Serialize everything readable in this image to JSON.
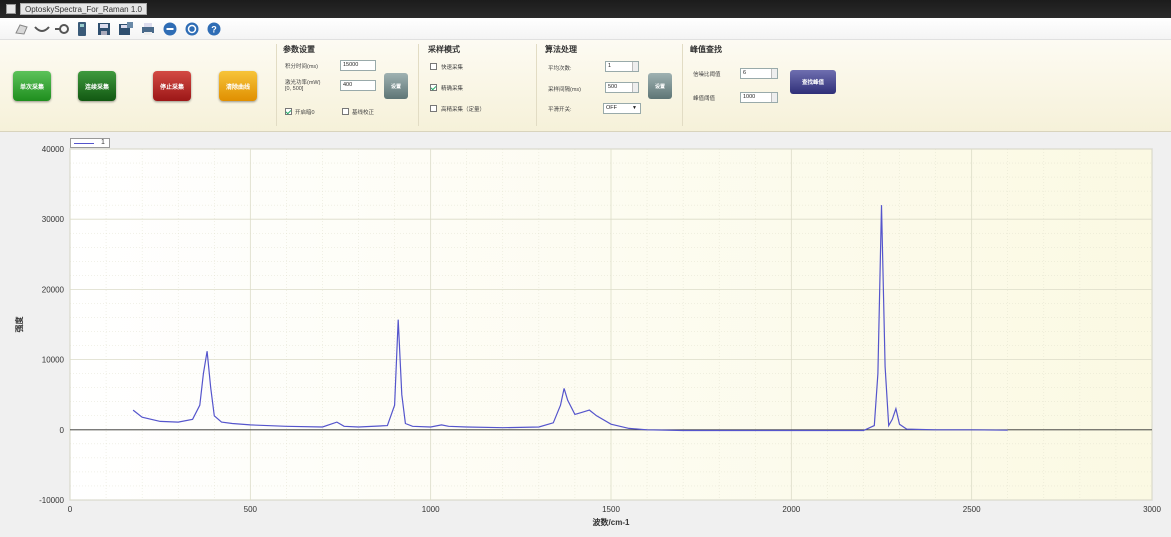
{
  "window": {
    "title": "OptoskySpectra_For_Raman 1.0"
  },
  "toolbar_icons": [
    "open-icon",
    "curve-icon",
    "zoom-icon",
    "device-icon",
    "save-icon",
    "save-as-icon",
    "print-icon",
    "zoom-in-icon",
    "zoom-out-icon",
    "help-icon"
  ],
  "buttons": {
    "single": "单次采集",
    "continuous": "连续采集",
    "stop": "停止采集",
    "save_curve": "清除曲线"
  },
  "params": {
    "title": "参数设置",
    "integration_label": "积分时间(ms)",
    "integration_value": "15000",
    "laser_label_1": "激光功率(mW)",
    "laser_label_2": "[0, 500]",
    "laser_value": "400",
    "set_label": "设置",
    "dark_label": "开启暗0",
    "baseline_label": "基线校正"
  },
  "mode": {
    "title": "采样模式",
    "fast": "快速采集",
    "precise": "精确采集",
    "high": "高精采集（定量）"
  },
  "algo": {
    "title": "算法处理",
    "avg_label": "平均次数:",
    "avg_value": "1",
    "window_label": "采样间隔(ms)",
    "window_value": "500",
    "smooth_label": "平滑开关:",
    "smooth_value": "OFF",
    "set_label": "设置"
  },
  "peak": {
    "title": "峰值查找",
    "snr_label": "信噪比阈值",
    "snr_value": "6",
    "threshold_label": "峰值阈值",
    "threshold_value": "1000",
    "find_label": "查找峰值"
  },
  "legend": {
    "label": "1"
  },
  "colors": {
    "line": "#5555cc",
    "plot_bg": "#fbf9e3",
    "grid": "#dcdcc8"
  },
  "chart_data": {
    "type": "line",
    "xlabel": "波数/cm-1",
    "ylabel": "强度",
    "xlim": [
      0,
      3000
    ],
    "ylim": [
      -10000,
      40000
    ],
    "x_ticks": [
      "0",
      "500",
      "1000",
      "1500",
      "2000",
      "2500",
      "3000"
    ],
    "y_ticks": [
      "-10000",
      "0",
      "10000",
      "20000",
      "30000",
      "40000"
    ],
    "grid": true,
    "series": [
      {
        "name": "1",
        "x": [
          175,
          200,
          250,
          300,
          340,
          360,
          370,
          380,
          390,
          400,
          420,
          450,
          500,
          600,
          700,
          740,
          760,
          800,
          880,
          900,
          910,
          920,
          930,
          950,
          1000,
          1030,
          1050,
          1100,
          1200,
          1300,
          1340,
          1360,
          1370,
          1380,
          1400,
          1420,
          1440,
          1460,
          1500,
          1550,
          1600,
          1700,
          1800,
          2000,
          2100,
          2200,
          2230,
          2240,
          2250,
          2260,
          2270,
          2280,
          2290,
          2300,
          2320,
          2400,
          2500,
          2600
        ],
        "y": [
          2800,
          1800,
          1200,
          1100,
          1500,
          3500,
          8000,
          11200,
          6000,
          2000,
          1100,
          900,
          700,
          500,
          400,
          1100,
          500,
          400,
          600,
          3500,
          15700,
          5000,
          900,
          500,
          400,
          700,
          500,
          400,
          300,
          400,
          1000,
          3500,
          5900,
          4200,
          2200,
          2500,
          2800,
          2000,
          800,
          200,
          0,
          -100,
          -100,
          -100,
          -100,
          -100,
          600,
          8000,
          32000,
          9000,
          600,
          1500,
          3000,
          800,
          100,
          0,
          0,
          -50
        ]
      }
    ]
  }
}
